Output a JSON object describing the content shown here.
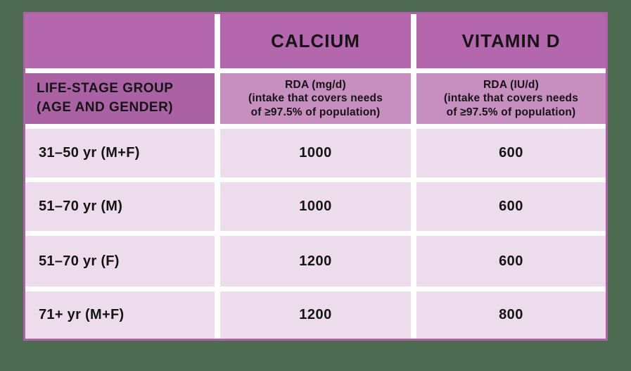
{
  "background_color": "#4c6b50",
  "table": {
    "columns": [
      {
        "header": "",
        "subheader_lines": [
          "LIFE-STAGE GROUP",
          "(AGE AND GENDER)"
        ]
      },
      {
        "header": "CALCIUM",
        "subheader_lines": [
          "RDA (mg/d)",
          "(intake that covers needs",
          "of ≥97.5% of population)"
        ]
      },
      {
        "header": "VITAMIN D",
        "subheader_lines": [
          "RDA (IU/d)",
          "(intake that covers needs",
          "of ≥97.5% of population)"
        ]
      }
    ],
    "rows": [
      {
        "group": "31–50 yr (M+F)",
        "calcium": "1000",
        "vitamin_d": "600"
      },
      {
        "group": "51–70 yr (M)",
        "calcium": "1000",
        "vitamin_d": "600"
      },
      {
        "group": "51–70 yr (F)",
        "calcium": "1200",
        "vitamin_d": "600"
      },
      {
        "group": "71+ yr (M+F)",
        "calcium": "1200",
        "vitamin_d": "800"
      }
    ],
    "colors": {
      "header_bg": "#b467ac",
      "left_header_bg": "#ab62a5",
      "subheader_bg": "#c78fc0",
      "cell_bg": "#ecdcec",
      "gutter": "#ffffff",
      "border": "#b15fa9",
      "text": "#141414"
    }
  },
  "chart_data": {
    "type": "table",
    "title": "",
    "columns": [
      "LIFE-STAGE GROUP (AGE AND GENDER)",
      "CALCIUM — RDA (mg/d) (intake that covers needs of ≥97.5% of population)",
      "VITAMIN D — RDA (IU/d) (intake that covers needs of ≥97.5% of population)"
    ],
    "rows": [
      [
        "31–50 yr (M+F)",
        1000,
        600
      ],
      [
        "51–70 yr (M)",
        1000,
        600
      ],
      [
        "51–70 yr (F)",
        1200,
        600
      ],
      [
        "71+ yr (M+F)",
        1200,
        800
      ]
    ]
  }
}
